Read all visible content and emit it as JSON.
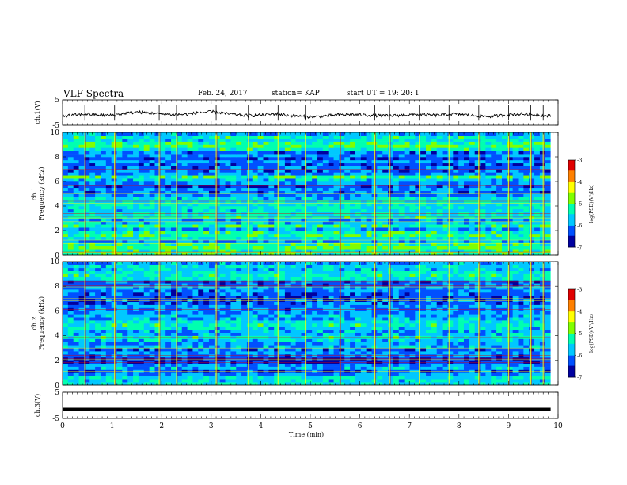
{
  "header": {
    "title": "VLF Spectra",
    "date": "Feb. 24, 2017",
    "station": "station= KAP",
    "start": "start  UT =   19: 20: 1"
  },
  "chart_data": [
    {
      "type": "line",
      "panel": "ch1-waveform",
      "ylabel": "ch.1(V)",
      "ylim": [
        -5,
        5
      ],
      "yticks": [
        "5",
        "-5"
      ],
      "x_range": [
        0,
        9.85
      ],
      "level_v": [
        -1.4,
        -1.0,
        -0.6,
        -1.0,
        -1.1,
        -0.3,
        0.2,
        -0.2,
        -0.6,
        -0.8,
        -0.7,
        0.0,
        0.3,
        -0.4,
        -1.0,
        -1.2,
        -1.0,
        -0.5,
        -1.1,
        -1.5,
        -1.8,
        -1.3,
        -0.9,
        -0.8,
        -1.0,
        -1.2,
        -1.3,
        -1.1,
        -0.8,
        -0.9,
        -1.1,
        -0.6,
        -0.8,
        -1.3,
        -1.6,
        -1.2,
        -0.7,
        -0.6,
        -1.0,
        -1.4
      ],
      "color": "#000000"
    },
    {
      "type": "heatmap",
      "panel": "ch1-spectrogram",
      "ylabel": "ch.1\nFrequency  (kHz)",
      "ylim": [
        0,
        10
      ],
      "yticks": [
        "0",
        "2",
        "4",
        "6",
        "8",
        "10"
      ],
      "colorbar": {
        "label": "log(PSD)(V²/Hz)",
        "range": [
          -7,
          -3
        ],
        "ticks": [
          "-3",
          "-4",
          "-5",
          "-6",
          "-7"
        ]
      },
      "band_values": [
        -5.2,
        -5.3,
        -5.0,
        -5.2,
        -5.9,
        -5.5,
        -5.2,
        -5.3,
        -5.8,
        -5.2,
        -5.7,
        -5.9,
        -5.4,
        -5.5,
        -5.6,
        -5.5,
        -5.5,
        -5.5,
        -5.6,
        -6.0,
        -6.2,
        -6.0,
        -6.3,
        -6.0,
        -5.7,
        -5.2,
        -6.0,
        -6.2,
        -6.2,
        -6.3,
        -6.0,
        -6.3,
        -6.0,
        -6.2,
        -5.4,
        -5.0,
        -5.2,
        -5.6,
        -5.4,
        -5.9
      ]
    },
    {
      "type": "heatmap",
      "panel": "ch2-spectrogram",
      "ylabel": "ch.2\nFrequency  (kHz)",
      "ylim": [
        0,
        10
      ],
      "yticks": [
        "0",
        "2",
        "4",
        "6",
        "8",
        "10"
      ],
      "colorbar": {
        "label": "log(PSD)(V²/Hz)",
        "range": [
          -7,
          -3
        ],
        "ticks": [
          "-3",
          "-4",
          "-5",
          "-6",
          "-7"
        ]
      },
      "band_values": [
        -5.5,
        -5.6,
        -5.5,
        -6.0,
        -6.3,
        -5.8,
        -6.0,
        -6.4,
        -6.5,
        -6.1,
        -6.0,
        -6.2,
        -5.8,
        -6.0,
        -5.7,
        -5.4,
        -5.8,
        -5.8,
        -5.6,
        -5.4,
        -5.5,
        -5.8,
        -5.8,
        -6.0,
        -6.1,
        -6.0,
        -6.2,
        -6.3,
        -6.4,
        -6.2,
        -6.1,
        -6.0,
        -6.1,
        -6.2,
        -5.5,
        -5.3,
        -5.5,
        -5.7,
        -5.6,
        -5.9
      ]
    },
    {
      "type": "line",
      "panel": "ch3-waveform",
      "ylabel": "ch.3(V)",
      "ylim": [
        -5,
        5
      ],
      "yticks": [
        "5",
        "-5"
      ],
      "x_range": [
        0,
        9.85
      ],
      "value": -1.5,
      "color": "#000000"
    }
  ],
  "x_axis": {
    "xlabel": "Time  (min)",
    "xlim": [
      0,
      10
    ],
    "ticks": [
      "0",
      "1",
      "2",
      "3",
      "4",
      "5",
      "6",
      "7",
      "8",
      "9",
      "10"
    ]
  },
  "colormap": [
    "#0000a0",
    "#0050ff",
    "#00c8ff",
    "#00ffb0",
    "#80ff00",
    "#ffff00",
    "#ff8000",
    "#e00000",
    "#ffffff"
  ],
  "events": [
    0.45,
    1.05,
    1.95,
    2.3,
    3.1,
    3.75,
    4.35,
    4.9,
    5.6,
    6.3,
    6.6,
    7.2,
    7.8,
    8.4,
    9.0,
    9.45,
    9.7
  ]
}
